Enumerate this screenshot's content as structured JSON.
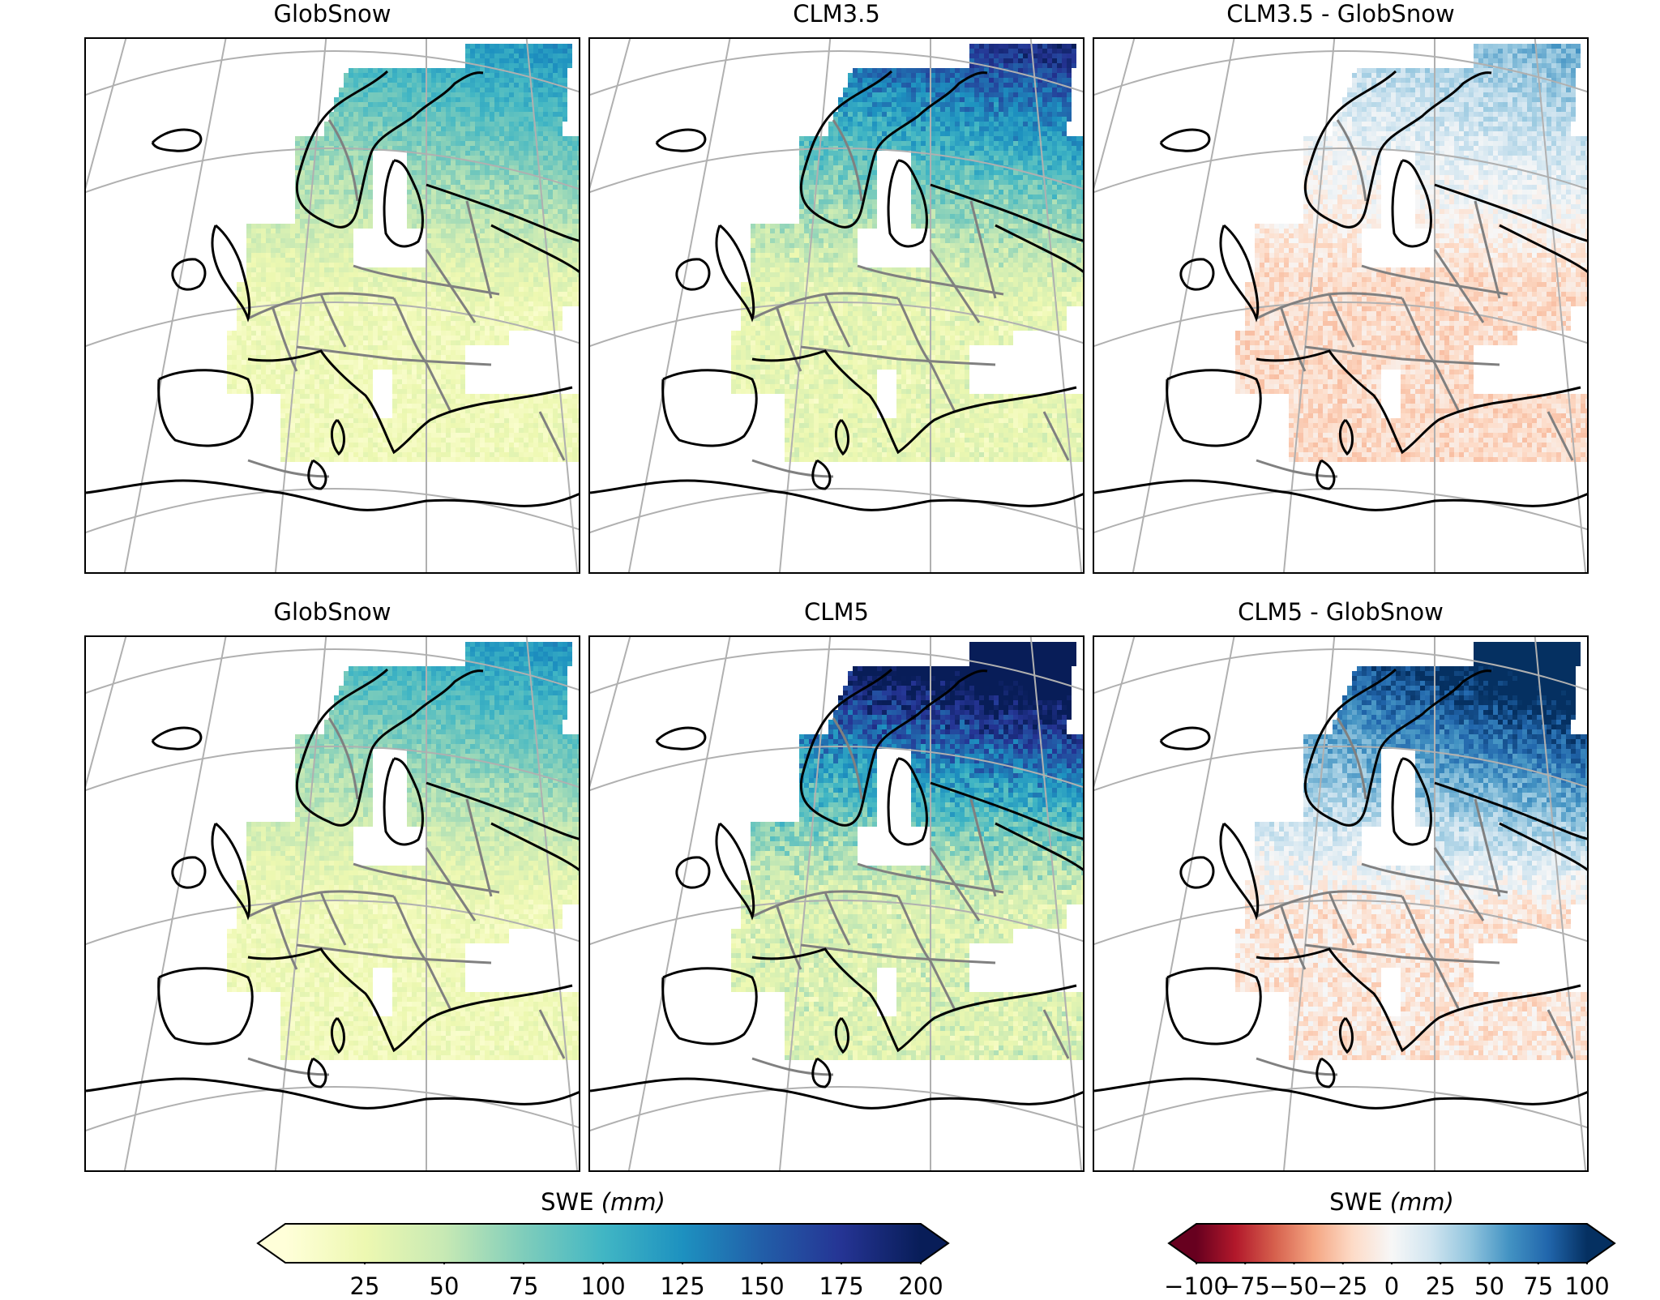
{
  "panels": [
    {
      "title": "GlobSnow",
      "field": "globsnow"
    },
    {
      "title": "CLM3.5",
      "field": "clm35"
    },
    {
      "title": "CLM3.5 - GlobSnow",
      "field": "diff35"
    },
    {
      "title": "GlobSnow",
      "field": "globsnow"
    },
    {
      "title": "CLM5",
      "field": "clm5"
    },
    {
      "title": "CLM5 - GlobSnow",
      "field": "diff5"
    }
  ],
  "colorbars": {
    "swe": {
      "label": "SWE",
      "unit": "(mm)",
      "colormap": "YlGnBu",
      "range": [
        0,
        200
      ],
      "extend": "both",
      "ticks": [
        "25",
        "50",
        "75",
        "100",
        "125",
        "150",
        "175",
        "200"
      ],
      "colors": [
        "#ffffd9",
        "#edf8b1",
        "#c7e9b4",
        "#7fcdbb",
        "#41b6c4",
        "#1d91c0",
        "#225ea8",
        "#253494",
        "#081d58"
      ]
    },
    "diff": {
      "label": "SWE",
      "unit": "(mm)",
      "colormap": "RdBu",
      "range": [
        -100,
        100
      ],
      "extend": "both",
      "ticks": [
        "−100",
        "−75",
        "−50",
        "−25",
        "0",
        "25",
        "50",
        "75",
        "100"
      ],
      "colors": [
        "#67001f",
        "#b2182b",
        "#d6604d",
        "#f4a582",
        "#fddbc7",
        "#f7f7f7",
        "#d1e5f0",
        "#92c5de",
        "#4393c3",
        "#2166ac",
        "#053061"
      ]
    }
  }
}
